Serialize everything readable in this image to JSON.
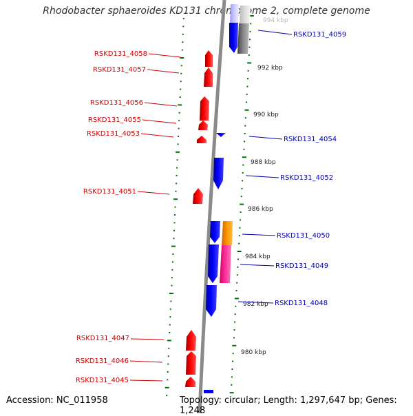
{
  "title": "Rhodobacter sphaeroides KD131 chromosome 2, complete genome",
  "footer": {
    "accession": "Accession: NC_011958",
    "summary": "Topology: circular; Length: 1,297,647 bp; Genes: 1,248"
  },
  "colors": {
    "backbone": "#888888",
    "tick": "#007000",
    "left_strand": "#ff0000",
    "right_strand": "#0000ff",
    "left_label": "#cc0000",
    "right_label": "#0000aa",
    "cds_gray": "#777777",
    "cds_orange": "#ff9900",
    "cds_pink": "#ff3399",
    "cds_lightblue": "#ccccff"
  },
  "kbp_labels": [
    {
      "text": "994 kbp",
      "kbp": 994
    },
    {
      "text": "992 kbp",
      "kbp": 992
    },
    {
      "text": "990 kbp",
      "kbp": 990
    },
    {
      "text": "988 kbp",
      "kbp": 988
    },
    {
      "text": "986 kbp",
      "kbp": 986
    },
    {
      "text": "984 kbp",
      "kbp": 984
    },
    {
      "text": "982 kbp",
      "kbp": 982
    },
    {
      "text": "980 kbp",
      "kbp": 980
    }
  ],
  "left_genes": [
    "RSKD131_4058",
    "RSKD131_4057",
    "RSKD131_4056",
    "RSKD131_4055",
    "RSKD131_4053",
    "RSKD131_4051",
    "RSKD131_4047",
    "RSKD131_4046",
    "RSKD131_4045"
  ],
  "right_genes": [
    "RSKD131_4059",
    "RSKD131_4054",
    "RSKD131_4052",
    "RSKD131_4050",
    "RSKD131_4049",
    "RSKD131_4048"
  ]
}
